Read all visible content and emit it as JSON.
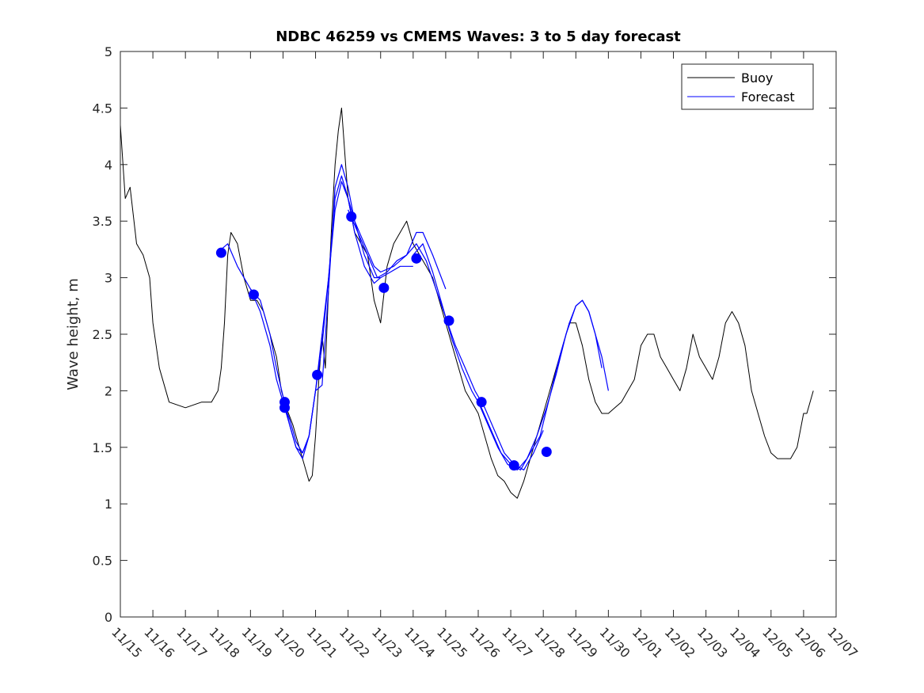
{
  "chart_data": {
    "type": "line",
    "title": "NDBC 46259 vs CMEMS Waves: 3 to 5 day forecast",
    "xlabel": "",
    "ylabel": "Wave height, m",
    "x_unit": "days since 11/15",
    "xlim": [
      0,
      22
    ],
    "ylim": [
      0,
      5
    ],
    "yticks": [
      0,
      0.5,
      1,
      1.5,
      2,
      2.5,
      3,
      3.5,
      4,
      4.5,
      5
    ],
    "ytick_labels": [
      "0",
      "0.5",
      "1",
      "1.5",
      "2",
      "2.5",
      "3",
      "3.5",
      "4",
      "4.5",
      "5"
    ],
    "xticks": [
      0,
      1,
      2,
      3,
      4,
      5,
      6,
      7,
      8,
      9,
      10,
      11,
      12,
      13,
      14,
      15,
      16,
      17,
      18,
      19,
      20,
      21,
      22
    ],
    "xtick_labels": [
      "11/15",
      "11/16",
      "11/17",
      "11/18",
      "11/19",
      "11/20",
      "11/21",
      "11/22",
      "11/23",
      "11/24",
      "11/25",
      "11/26",
      "11/27",
      "11/28",
      "11/29",
      "11/30",
      "12/01",
      "12/02",
      "12/03",
      "12/04",
      "12/05",
      "12/06",
      "12/07"
    ],
    "legend": {
      "position": "top-right",
      "entries": [
        "Buoy",
        "Forecast"
      ]
    },
    "colors": {
      "buoy": "#000000",
      "forecast": "#0000ff",
      "axis": "#262626"
    },
    "series": [
      {
        "name": "Buoy",
        "color": "#000000",
        "x": [
          0,
          0.15,
          0.3,
          0.5,
          0.7,
          0.9,
          1.0,
          1.2,
          1.5,
          2.0,
          2.5,
          2.8,
          3.0,
          3.1,
          3.2,
          3.3,
          3.4,
          3.6,
          3.8,
          4.0,
          4.2,
          4.4,
          4.6,
          4.8,
          4.95,
          5.1,
          5.3,
          5.5,
          5.7,
          5.8,
          5.9,
          6.0,
          6.1,
          6.2,
          6.3,
          6.4,
          6.5,
          6.6,
          6.7,
          6.8,
          6.9,
          7.0,
          7.2,
          7.4,
          7.6,
          7.8,
          8.0,
          8.2,
          8.4,
          8.6,
          8.8,
          9.0,
          9.2,
          9.4,
          9.6,
          9.8,
          10.0,
          10.2,
          10.4,
          10.6,
          10.8,
          11.0,
          11.2,
          11.4,
          11.6,
          11.8,
          12.0,
          12.2,
          12.4,
          12.6,
          12.8,
          13.0,
          13.2,
          13.4,
          13.6,
          13.8,
          14.0,
          14.2,
          14.4,
          14.6,
          14.8,
          15.0,
          15.2,
          15.4,
          15.6,
          15.8,
          16.0,
          16.2,
          16.4,
          16.6,
          16.8,
          17.0,
          17.2,
          17.4,
          17.6,
          17.8,
          18.0,
          18.2,
          18.4,
          18.6,
          18.8,
          19.0,
          19.2,
          19.4,
          19.6,
          19.8,
          20.0,
          20.2,
          20.4,
          20.6,
          20.8,
          21.0,
          21.1,
          21.3
        ],
        "values": [
          4.35,
          3.7,
          3.8,
          3.3,
          3.2,
          3.0,
          2.6,
          2.2,
          1.9,
          1.85,
          1.9,
          1.9,
          2.0,
          2.2,
          2.6,
          3.2,
          3.4,
          3.3,
          3.0,
          2.8,
          2.8,
          2.7,
          2.5,
          2.3,
          2.0,
          1.85,
          1.7,
          1.5,
          1.3,
          1.2,
          1.25,
          1.6,
          2.1,
          2.5,
          2.2,
          2.9,
          3.5,
          4.0,
          4.3,
          4.5,
          4.1,
          3.7,
          3.4,
          3.3,
          3.2,
          2.8,
          2.6,
          3.1,
          3.3,
          3.4,
          3.5,
          3.3,
          3.2,
          3.1,
          3.0,
          2.8,
          2.6,
          2.4,
          2.2,
          2.0,
          1.9,
          1.8,
          1.6,
          1.4,
          1.25,
          1.2,
          1.1,
          1.05,
          1.2,
          1.4,
          1.6,
          1.8,
          2.0,
          2.2,
          2.4,
          2.6,
          2.6,
          2.4,
          2.1,
          1.9,
          1.8,
          1.8,
          1.85,
          1.9,
          2.0,
          2.1,
          2.4,
          2.5,
          2.5,
          2.3,
          2.2,
          2.1,
          2.0,
          2.2,
          2.5,
          2.3,
          2.2,
          2.1,
          2.3,
          2.6,
          2.7,
          2.6,
          2.4,
          2.0,
          1.8,
          1.6,
          1.45,
          1.4,
          1.4,
          1.4,
          1.5,
          1.8,
          1.8,
          2.0
        ]
      },
      {
        "name": "Forecast",
        "color": "#0000ff",
        "runs": [
          {
            "x": [
              3.1,
              3.3,
              3.6,
              4.0,
              4.3,
              4.6,
              4.8,
              5.0,
              5.2,
              5.4,
              5.6,
              5.8,
              6.0,
              6.2,
              6.4,
              6.6,
              6.8,
              7.0,
              7.2,
              7.5,
              7.8,
              8.0
            ],
            "values": [
              3.25,
              3.3,
              3.1,
              2.9,
              2.7,
              2.4,
              2.1,
              1.9,
              1.7,
              1.5,
              1.4,
              1.6,
              2.0,
              2.4,
              3.0,
              3.7,
              3.9,
              3.7,
              3.4,
              3.1,
              2.95,
              3.0
            ]
          },
          {
            "x": [
              4.0,
              4.3,
              4.6,
              4.8,
              5.0,
              5.2,
              5.4,
              5.6,
              5.8,
              6.0,
              6.2,
              6.4,
              6.6,
              6.8,
              7.0,
              7.2,
              7.5,
              7.8,
              8.0,
              8.3,
              8.6,
              9.0
            ],
            "values": [
              2.9,
              2.8,
              2.5,
              2.2,
              1.95,
              1.7,
              1.5,
              1.45,
              1.6,
              2.0,
              2.05,
              2.9,
              3.8,
              4.0,
              3.8,
              3.5,
              3.2,
              3.0,
              3.0,
              3.05,
              3.1,
              3.1
            ]
          },
          {
            "x": [
              5.0,
              5.2,
              5.4,
              5.6,
              5.8,
              6.0,
              6.2,
              6.4,
              6.6,
              6.8,
              7.0,
              7.2,
              7.5,
              7.8,
              8.0,
              8.4,
              8.8,
              9.1,
              9.3,
              9.6,
              10.0
            ],
            "values": [
              1.9,
              1.75,
              1.55,
              1.45,
              1.6,
              2.0,
              2.5,
              3.0,
              3.6,
              3.85,
              3.7,
              3.5,
              3.3,
              3.1,
              3.05,
              3.1,
              3.2,
              3.4,
              3.4,
              3.2,
              2.9
            ]
          },
          {
            "x": [
              7.0,
              7.3,
              7.6,
              7.9,
              8.2,
              8.5,
              8.8,
              9.1,
              9.4,
              9.7,
              10.0,
              10.3,
              10.6,
              10.9,
              11.2,
              11.5,
              11.8,
              12.1,
              12.4,
              12.7,
              13.0
            ],
            "values": [
              3.6,
              3.4,
              3.2,
              3.0,
              3.05,
              3.15,
              3.2,
              3.3,
              3.15,
              2.9,
              2.65,
              2.4,
              2.2,
              2.0,
              1.85,
              1.65,
              1.45,
              1.35,
              1.3,
              1.45,
              1.65
            ]
          },
          {
            "x": [
              9.0,
              9.3,
              9.6,
              9.9,
              10.2,
              10.5,
              10.8,
              11.1,
              11.4,
              11.7,
              12.0,
              12.3,
              12.6,
              12.9,
              13.2,
              13.5,
              13.8,
              14.0,
              14.2,
              14.4,
              14.6,
              14.8,
              15.0
            ],
            "values": [
              3.2,
              3.3,
              3.05,
              2.75,
              2.45,
              2.2,
              2.0,
              1.85,
              1.65,
              1.45,
              1.35,
              1.3,
              1.45,
              1.6,
              1.95,
              2.3,
              2.6,
              2.75,
              2.8,
              2.7,
              2.5,
              2.3,
              2.0
            ]
          },
          {
            "x": [
              11.0,
              11.3,
              11.6,
              11.9,
              12.2,
              12.5,
              12.8,
              13.1,
              13.4,
              13.7,
              14.0,
              14.2,
              14.4,
              14.6,
              14.8
            ],
            "values": [
              1.9,
              1.7,
              1.5,
              1.35,
              1.3,
              1.4,
              1.6,
              1.85,
              2.15,
              2.5,
              2.75,
              2.8,
              2.7,
              2.5,
              2.2
            ]
          }
        ],
        "markers": {
          "x": [
            3.1,
            4.1,
            5.05,
            5.05,
            6.05,
            7.1,
            8.1,
            9.1,
            10.1,
            11.1,
            12.1,
            13.1
          ],
          "values": [
            3.22,
            2.85,
            1.9,
            1.85,
            2.14,
            3.54,
            2.91,
            3.17,
            2.62,
            1.9,
            1.34,
            1.46
          ]
        }
      }
    ]
  }
}
